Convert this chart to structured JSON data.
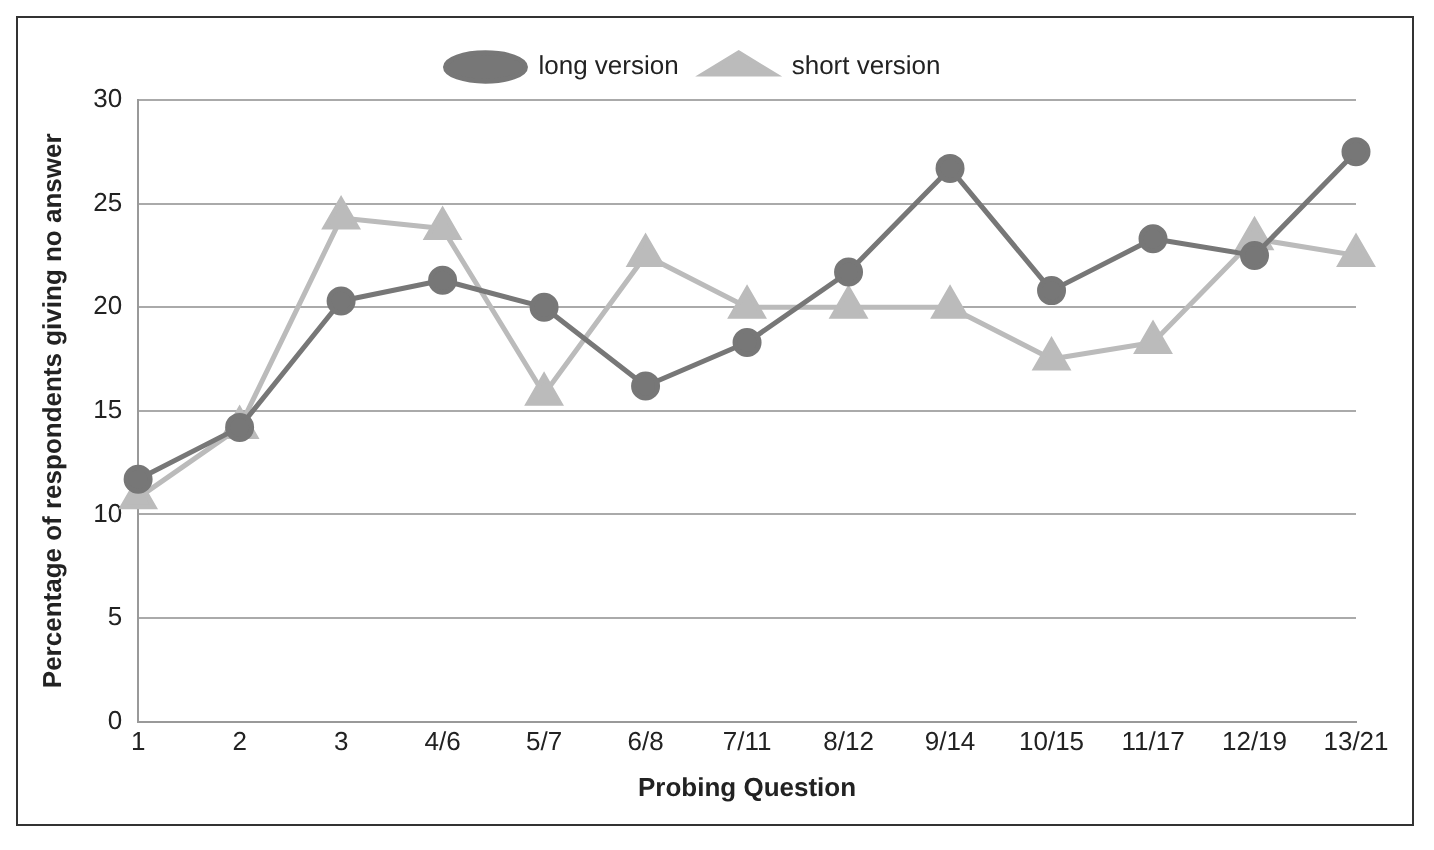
{
  "chart_data": {
    "type": "line",
    "xlabel": "Probing Question",
    "ylabel": "Percentage of respondents giving no answer",
    "categories": [
      "1",
      "2",
      "3",
      "4/6",
      "5/7",
      "6/8",
      "7/11",
      "8/12",
      "9/14",
      "10/15",
      "11/17",
      "12/19",
      "13/21"
    ],
    "series": [
      {
        "name": "long version",
        "color": "#777777",
        "marker": "circle",
        "values": [
          11.7,
          14.2,
          20.3,
          21.3,
          20.0,
          16.2,
          18.3,
          21.7,
          26.7,
          20.8,
          23.3,
          22.5,
          27.5
        ]
      },
      {
        "name": "short version",
        "color": "#bbbbbb",
        "marker": "triangle",
        "values": [
          10.8,
          14.2,
          24.3,
          23.8,
          15.8,
          22.5,
          20.0,
          20.0,
          20.0,
          17.5,
          18.3,
          23.3,
          22.5
        ]
      }
    ],
    "ylim": [
      0,
      30
    ],
    "yticks": [
      0,
      5,
      10,
      15,
      20,
      25,
      30
    ],
    "grid": "y",
    "legend": "top"
  }
}
